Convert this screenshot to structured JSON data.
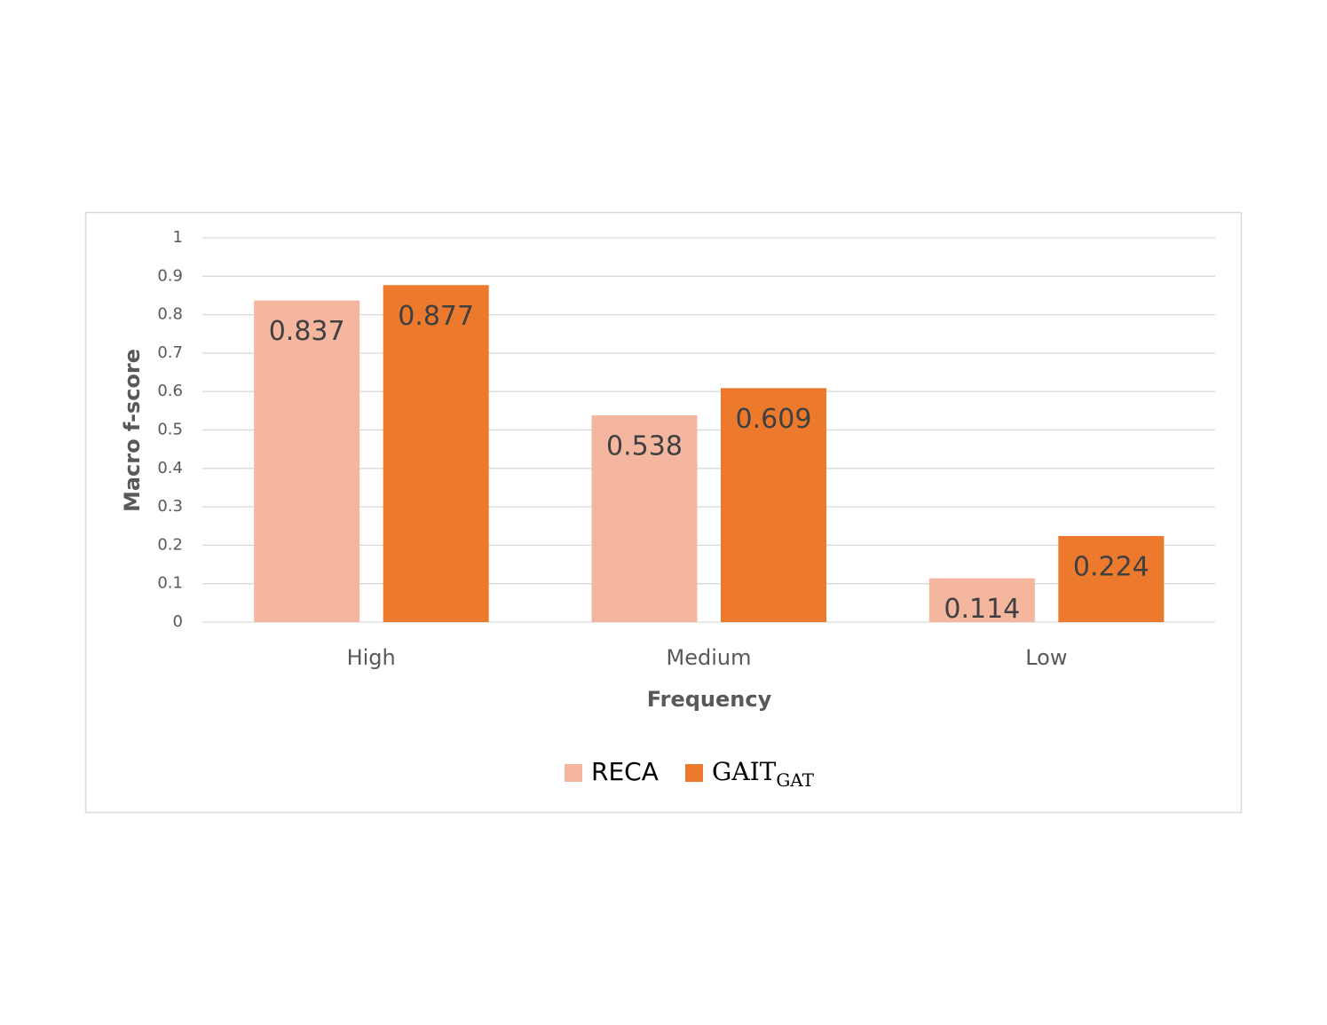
{
  "chart_data": {
    "type": "bar",
    "x_label": "Frequency",
    "y_label": "Macro f-score",
    "categories": [
      "High",
      "Medium",
      "Low"
    ],
    "series": [
      {
        "name": "RECA",
        "color": "#f4b69e",
        "values": [
          0.837,
          0.538,
          0.114
        ]
      },
      {
        "name": "GAIT",
        "name_subscript": "GAT",
        "color": "#ed7a2c",
        "values": [
          0.877,
          0.609,
          0.224
        ]
      }
    ],
    "ylim": [
      0,
      1
    ],
    "yticks": [
      0,
      0.1,
      0.2,
      0.3,
      0.4,
      0.5,
      0.6,
      0.7,
      0.8,
      0.9,
      1
    ],
    "grid": true
  }
}
